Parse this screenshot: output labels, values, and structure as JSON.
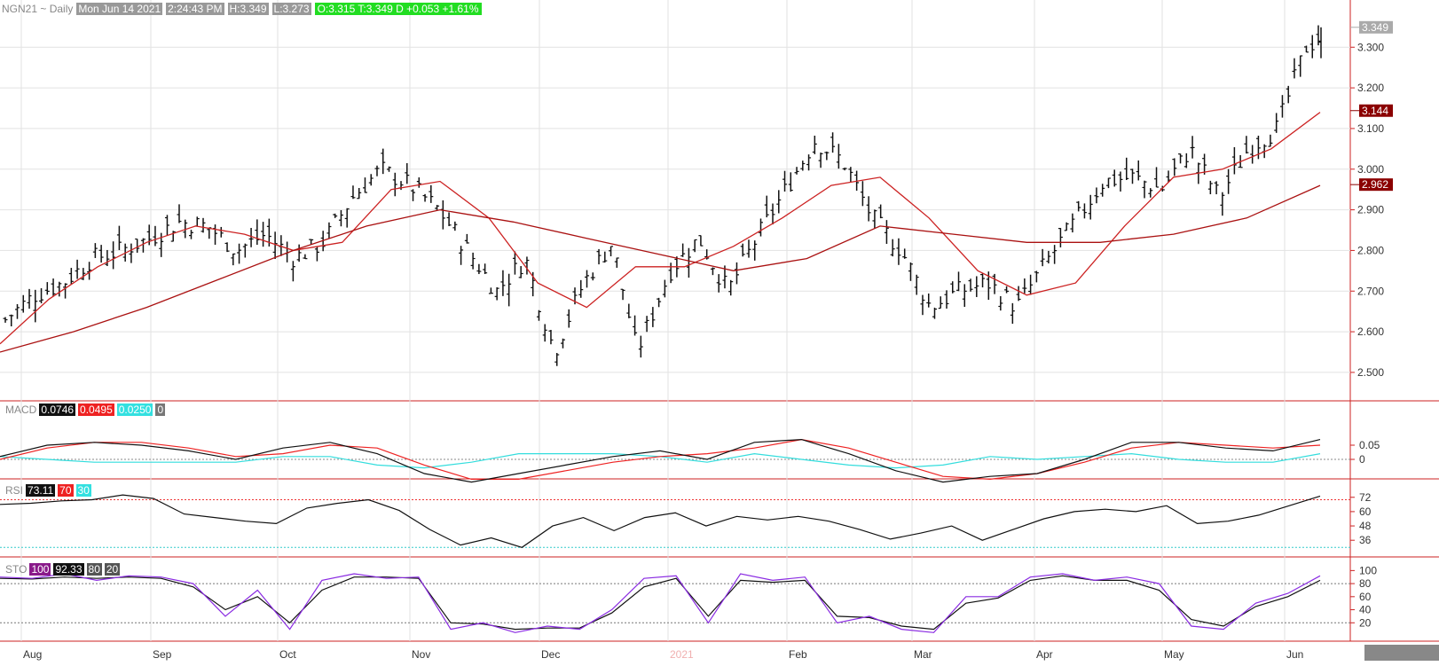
{
  "header": {
    "symbol": "NGN21 ~ Daily",
    "date": "Mon Jun 14 2021",
    "time": "2:24:43 PM",
    "high": "H:3.349",
    "low": "L:3.273",
    "quote": "O:3.315  T:3.349 D  +0.053  +1.61%"
  },
  "chart_data": [
    {
      "type": "ohlc",
      "title": "NGN21 ~ Daily",
      "x_labels": [
        "Aug",
        "Sep",
        "Oct",
        "Nov",
        "Dec",
        "2021",
        "Feb",
        "Mar",
        "Apr",
        "May",
        "Jun"
      ],
      "y_ticks": [
        3.3,
        3.2,
        3.1,
        3.0,
        2.9,
        2.8,
        2.7,
        2.6,
        2.5
      ],
      "y_tick_labels": [
        "3.300",
        "3.200",
        "3.100",
        "3.000",
        "2.900",
        "2.800",
        "2.700",
        "2.600",
        "2.500"
      ],
      "ylim": [
        2.43,
        3.39
      ],
      "right_markers": [
        {
          "label": "3.349",
          "value": 3.349,
          "color": "#aaaaaa"
        },
        {
          "label": "3.144",
          "value": 3.144,
          "color": "#8b0000"
        },
        {
          "label": "2.962",
          "value": 2.962,
          "color": "#8b0000"
        }
      ],
      "close_trace": [
        [
          "2020-07-31",
          2.63
        ],
        [
          "2020-08-07",
          2.69
        ],
        [
          "2020-08-14",
          2.72
        ],
        [
          "2020-08-21",
          2.78
        ],
        [
          "2020-08-28",
          2.8
        ],
        [
          "2020-09-04",
          2.83
        ],
        [
          "2020-09-11",
          2.87
        ],
        [
          "2020-09-18",
          2.86
        ],
        [
          "2020-09-25",
          2.8
        ],
        [
          "2020-10-02",
          2.84
        ],
        [
          "2020-10-09",
          2.78
        ],
        [
          "2020-10-16",
          2.82
        ],
        [
          "2020-10-23",
          2.93
        ],
        [
          "2020-10-30",
          3.0
        ],
        [
          "2020-11-06",
          2.96
        ],
        [
          "2020-11-13",
          2.9
        ],
        [
          "2020-11-20",
          2.8
        ],
        [
          "2020-11-27",
          2.7
        ],
        [
          "2020-12-04",
          2.78
        ],
        [
          "2020-12-11",
          2.55
        ],
        [
          "2020-12-18",
          2.72
        ],
        [
          "2020-12-25",
          2.82
        ],
        [
          "2020-12-31",
          2.55
        ],
        [
          "2021-01-08",
          2.75
        ],
        [
          "2021-01-15",
          2.83
        ],
        [
          "2021-01-22",
          2.7
        ],
        [
          "2021-01-29",
          2.83
        ],
        [
          "2021-02-05",
          2.95
        ],
        [
          "2021-02-12",
          3.07
        ],
        [
          "2021-02-19",
          3.02
        ],
        [
          "2021-02-26",
          2.88
        ],
        [
          "2021-03-05",
          2.8
        ],
        [
          "2021-03-12",
          2.66
        ],
        [
          "2021-03-19",
          2.7
        ],
        [
          "2021-03-26",
          2.72
        ],
        [
          "2021-04-02",
          2.66
        ],
        [
          "2021-04-09",
          2.77
        ],
        [
          "2021-04-16",
          2.87
        ],
        [
          "2021-04-23",
          2.97
        ],
        [
          "2021-04-30",
          2.98
        ],
        [
          "2021-05-07",
          2.95
        ],
        [
          "2021-05-14",
          3.05
        ],
        [
          "2021-05-21",
          2.93
        ],
        [
          "2021-05-28",
          3.05
        ],
        [
          "2021-06-04",
          3.1
        ],
        [
          "2021-06-11",
          3.3
        ],
        [
          "2021-06-14",
          3.32
        ]
      ],
      "ma_short": [
        2.57,
        2.68,
        2.76,
        2.82,
        2.86,
        2.84,
        2.8,
        2.82,
        2.95,
        2.97,
        2.88,
        2.72,
        2.66,
        2.76,
        2.76,
        2.81,
        2.88,
        2.96,
        2.98,
        2.88,
        2.75,
        2.69,
        2.72,
        2.86,
        2.98,
        3.0,
        3.05,
        3.14
      ],
      "ma_long": [
        2.55,
        2.6,
        2.66,
        2.73,
        2.8,
        2.86,
        2.9,
        2.87,
        2.83,
        2.79,
        2.75,
        2.78,
        2.86,
        2.84,
        2.82,
        2.82,
        2.84,
        2.88,
        2.96
      ],
      "series": [
        {
          "name": "price",
          "color": "#111111"
        },
        {
          "name": "ma_short",
          "color": "#cc2222"
        },
        {
          "name": "ma_long",
          "color": "#cc2222"
        }
      ]
    },
    {
      "type": "line",
      "title": "MACD",
      "legend": [
        "0.0746",
        "0.0495",
        "0.0250",
        "0"
      ],
      "y_tick_labels": [
        "0.05",
        "0"
      ],
      "ylim": [
        -0.12,
        0.12
      ],
      "macd": [
        0.01,
        0.05,
        0.06,
        0.05,
        0.03,
        0.0,
        0.04,
        0.06,
        0.02,
        -0.05,
        -0.08,
        -0.05,
        -0.02,
        0.01,
        0.03,
        0.0,
        0.06,
        0.07,
        0.02,
        -0.04,
        -0.08,
        -0.06,
        -0.05,
        0.0,
        0.06,
        0.06,
        0.04,
        0.03,
        0.07
      ],
      "signal": [
        0.0,
        0.04,
        0.06,
        0.06,
        0.04,
        0.01,
        0.02,
        0.05,
        0.04,
        -0.02,
        -0.07,
        -0.07,
        -0.04,
        -0.01,
        0.01,
        0.02,
        0.04,
        0.07,
        0.04,
        -0.01,
        -0.06,
        -0.07,
        -0.05,
        -0.01,
        0.04,
        0.06,
        0.05,
        0.04,
        0.05
      ],
      "hist": [
        0.01,
        0.0,
        -0.01,
        -0.01,
        -0.01,
        -0.01,
        0.01,
        0.01,
        -0.02,
        -0.03,
        -0.01,
        0.02,
        0.02,
        0.02,
        0.01,
        -0.01,
        0.02,
        0.0,
        -0.02,
        -0.03,
        -0.02,
        0.01,
        0.0,
        0.01,
        0.02,
        0.0,
        -0.01,
        -0.01,
        0.02
      ],
      "series": [
        {
          "name": "macd",
          "color": "#111111"
        },
        {
          "name": "signal",
          "color": "#ee2222"
        },
        {
          "name": "hist",
          "color": "#33dddd"
        }
      ]
    },
    {
      "type": "line",
      "title": "RSI",
      "legend": [
        "73.11",
        "70",
        "30"
      ],
      "y_tick_labels": [
        "72",
        "60",
        "48",
        "36"
      ],
      "ylim": [
        25,
        80
      ],
      "overbought": 70,
      "oversold": 30,
      "rsi": [
        66,
        67,
        69,
        70,
        74,
        71,
        58,
        55,
        52,
        50,
        63,
        67,
        70,
        61,
        45,
        32,
        38,
        30,
        48,
        55,
        44,
        55,
        59,
        48,
        56,
        53,
        56,
        52,
        45,
        37,
        42,
        48,
        36,
        45,
        54,
        60,
        62,
        60,
        65,
        50,
        52,
        57,
        65,
        73
      ],
      "series": [
        {
          "name": "rsi",
          "color": "#111111"
        }
      ]
    },
    {
      "type": "line",
      "title": "STO",
      "legend": [
        "100",
        "92.33",
        "80",
        "20"
      ],
      "y_tick_labels": [
        "100",
        "80",
        "60",
        "40",
        "20"
      ],
      "ylim": [
        0,
        110
      ],
      "upper": 80,
      "lower": 20,
      "k": [
        90,
        88,
        95,
        85,
        92,
        90,
        80,
        30,
        70,
        10,
        85,
        95,
        88,
        90,
        10,
        20,
        5,
        15,
        10,
        40,
        88,
        92,
        20,
        95,
        85,
        90,
        20,
        30,
        10,
        5,
        60,
        60,
        90,
        95,
        85,
        90,
        80,
        15,
        10,
        50,
        65,
        92
      ],
      "d": [
        88,
        87,
        90,
        88,
        90,
        88,
        75,
        40,
        60,
        20,
        70,
        90,
        90,
        88,
        20,
        18,
        10,
        12,
        12,
        35,
        75,
        88,
        30,
        85,
        82,
        85,
        30,
        28,
        15,
        10,
        50,
        58,
        85,
        92,
        85,
        85,
        70,
        25,
        15,
        45,
        60,
        85
      ],
      "series": [
        {
          "name": "k",
          "color": "#8a2be2"
        },
        {
          "name": "d",
          "color": "#111111"
        }
      ]
    }
  ]
}
